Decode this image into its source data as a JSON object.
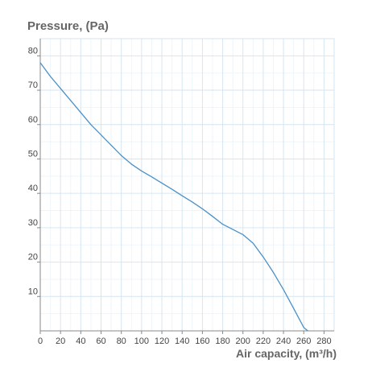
{
  "chart_data": {
    "type": "line",
    "title": "",
    "ylabel": "Pressure, (Pa)",
    "xlabel": "Air capacity, (m³/h)",
    "xlim": [
      0,
      290
    ],
    "ylim": [
      0,
      85
    ],
    "x_ticks": [
      0,
      20,
      40,
      60,
      80,
      100,
      120,
      140,
      160,
      180,
      200,
      220,
      240,
      260,
      280
    ],
    "y_ticks": [
      10,
      20,
      30,
      40,
      50,
      60,
      70,
      80
    ],
    "grid": true,
    "series": [
      {
        "color": "#4a90c8",
        "points": [
          [
            0,
            78
          ],
          [
            10,
            74
          ],
          [
            20,
            70.5
          ],
          [
            30,
            67
          ],
          [
            40,
            63.5
          ],
          [
            50,
            60
          ],
          [
            60,
            57
          ],
          [
            70,
            54
          ],
          [
            80,
            51
          ],
          [
            90,
            48.5
          ],
          [
            100,
            46.5
          ],
          [
            110,
            44.8
          ],
          [
            120,
            43
          ],
          [
            130,
            41.2
          ],
          [
            140,
            39.3
          ],
          [
            150,
            37.5
          ],
          [
            160,
            35.5
          ],
          [
            170,
            33.3
          ],
          [
            180,
            31
          ],
          [
            200,
            28
          ],
          [
            210,
            25.5
          ],
          [
            220,
            21.5
          ],
          [
            230,
            17
          ],
          [
            240,
            12
          ],
          [
            250,
            6.5
          ],
          [
            260,
            1
          ],
          [
            264,
            0
          ]
        ]
      }
    ]
  }
}
